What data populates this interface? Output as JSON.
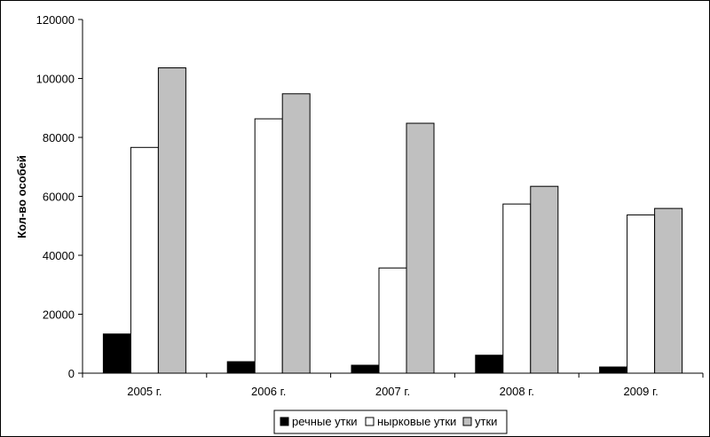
{
  "chart_data": {
    "type": "bar",
    "title": "",
    "xlabel": "",
    "ylabel": "Кол-во особей",
    "ylim": [
      0,
      120000
    ],
    "yticks": [
      "0",
      "20000",
      "40000",
      "60000",
      "80000",
      "100000",
      "120000"
    ],
    "categories": [
      "2005 г.",
      "2006 г.",
      "2007 г.",
      "2008 г.",
      "2009 г."
    ],
    "grid": false,
    "legend_position": "bottom",
    "series": [
      {
        "name": "речные утки",
        "color": "#000000",
        "values": [
          13300,
          3900,
          2700,
          6100,
          2100
        ]
      },
      {
        "name": "нырковые утки",
        "color": "#ffffff",
        "values": [
          76600,
          86300,
          35700,
          57400,
          53700
        ]
      },
      {
        "name": "утки",
        "color": "#c0c0c0",
        "values": [
          103600,
          94800,
          84800,
          63400,
          55900
        ]
      }
    ]
  }
}
